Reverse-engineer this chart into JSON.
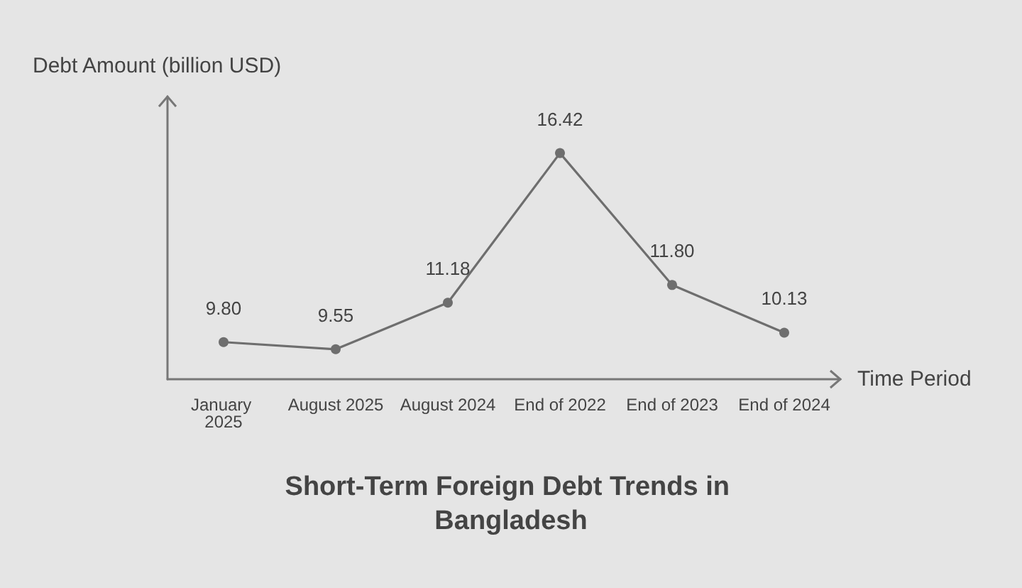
{
  "chart_data": {
    "type": "line",
    "title": "Short-Term Foreign Debt Trends in Bangladesh",
    "xlabel": "Time Period",
    "ylabel": "Debt Amount (billion USD)",
    "categories": [
      "January 2025",
      "August 2025",
      "August 2024",
      "End of 2022",
      "End of 2023",
      "End of 2024"
    ],
    "series": [
      {
        "color": "#6e6e6e",
        "values": [
          9.8,
          9.55,
          11.18,
          16.42,
          11.8,
          10.13
        ],
        "value_labels": [
          "9.80",
          "9.55",
          "11.18",
          "16.42",
          "11.80",
          "10.13"
        ]
      }
    ],
    "ylim": [
      8.5,
      18.4
    ],
    "tick_labels": "x",
    "grid": false,
    "marker": "circle",
    "line_style": "solid"
  }
}
